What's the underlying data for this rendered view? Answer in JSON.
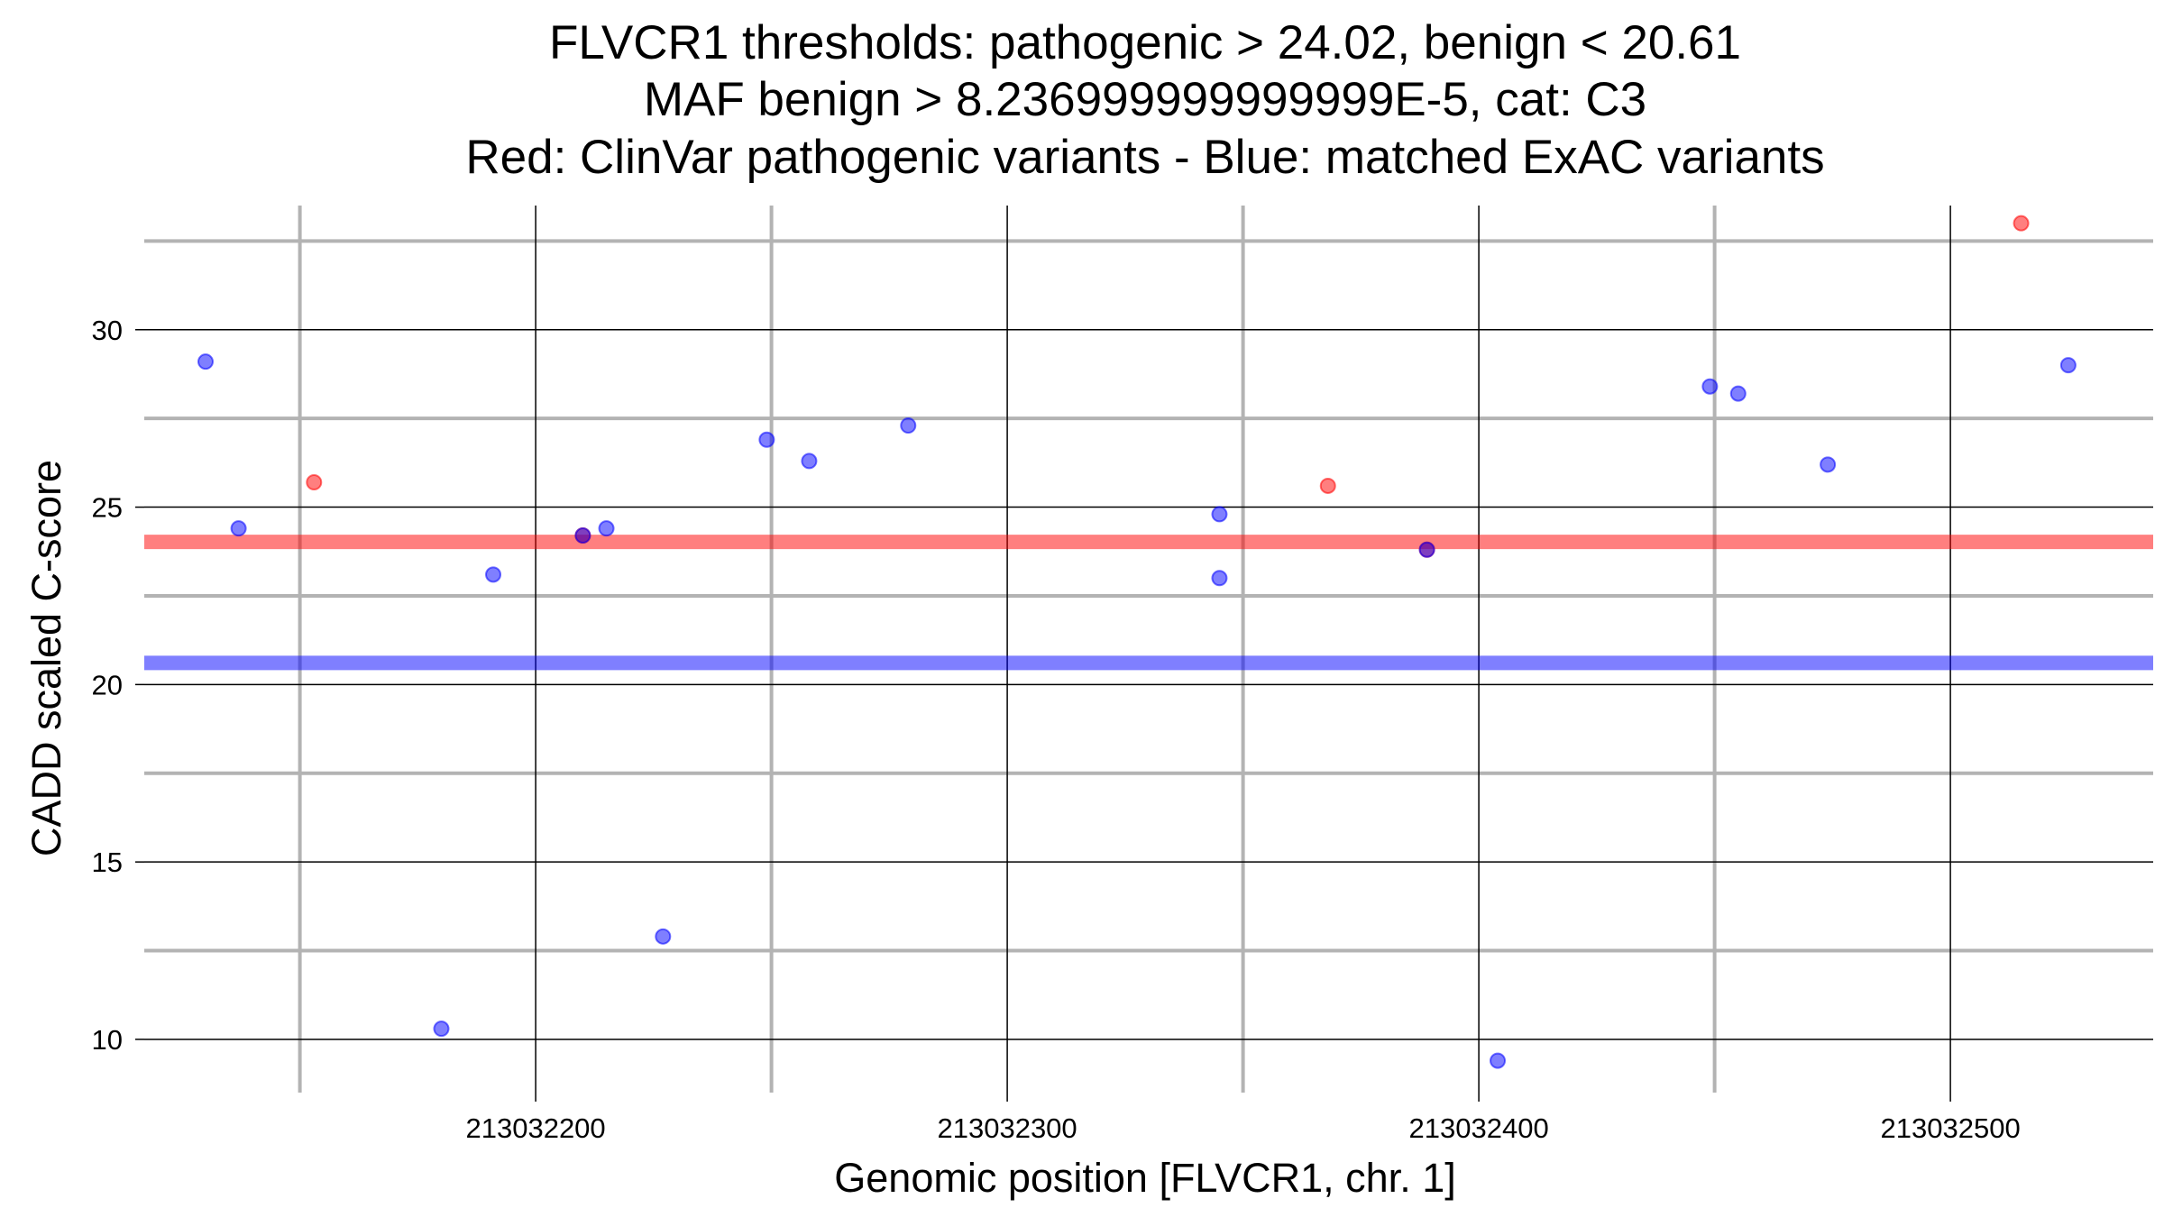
{
  "chart_data": {
    "type": "scatter",
    "title": [
      "FLVCR1 thresholds: pathogenic > 24.02, benign < 20.61",
      "MAF benign > 8.236999999999999E-5, cat: C3",
      "Red: ClinVar pathogenic variants - Blue: matched ExAC variants"
    ],
    "xlabel": "Genomic position [FLVCR1, chr. 1]",
    "ylabel": "CADD scaled C-score",
    "xlim": [
      213032117,
      213032543
    ],
    "ylim": [
      8.5,
      33.5
    ],
    "x_major_ticks": [
      213032200,
      213032300,
      213032400,
      213032500
    ],
    "x_tick_labels": [
      "213032200",
      "213032300",
      "213032400",
      "213032500"
    ],
    "x_minor_ticks": [
      213032150,
      213032250,
      213032350,
      213032450
    ],
    "y_major_ticks": [
      10,
      15,
      20,
      25,
      30
    ],
    "y_tick_labels": [
      "10",
      "15",
      "20",
      "25",
      "30"
    ],
    "y_minor_ticks": [
      12.5,
      17.5,
      22.5,
      27.5,
      32.5
    ],
    "thresholds": [
      {
        "name": "pathogenic",
        "y": 24.02,
        "color": "#ff0000"
      },
      {
        "name": "benign",
        "y": 20.61,
        "color": "#0000ff"
      }
    ],
    "series": [
      {
        "name": "ClinVar pathogenic variants",
        "color": "#ff0000",
        "x": [
          213032153,
          213032210,
          213032368,
          213032389,
          213032515
        ],
        "y": [
          25.7,
          24.2,
          25.6,
          23.8,
          33.0
        ]
      },
      {
        "name": "matched ExAC variants",
        "color": "#0000ff",
        "x": [
          213032130,
          213032137,
          213032180,
          213032191,
          213032210,
          213032215,
          213032227,
          213032249,
          213032258,
          213032279,
          213032345,
          213032345,
          213032389,
          213032404,
          213032449,
          213032455,
          213032474,
          213032525
        ],
        "y": [
          29.1,
          24.4,
          10.3,
          23.1,
          24.2,
          24.4,
          12.9,
          26.9,
          26.3,
          27.3,
          24.8,
          23.0,
          23.8,
          9.4,
          28.4,
          28.2,
          26.2,
          29.0
        ]
      }
    ]
  }
}
